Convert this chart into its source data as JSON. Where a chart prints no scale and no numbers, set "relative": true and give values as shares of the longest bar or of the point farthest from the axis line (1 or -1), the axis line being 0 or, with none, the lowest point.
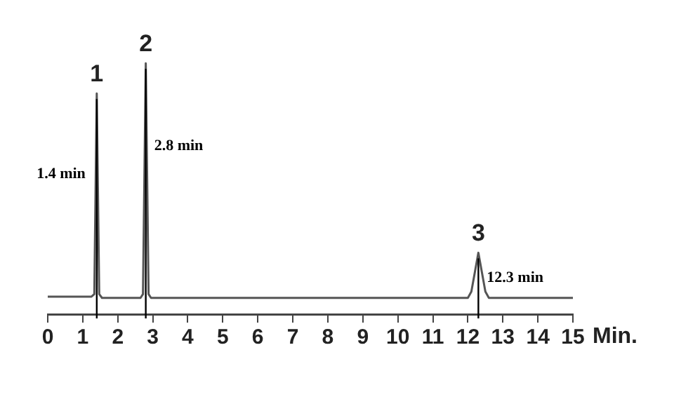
{
  "chart_data": {
    "type": "line",
    "relative": true,
    "xlabel": "Min.",
    "x": [
      0,
      1.25,
      1.33,
      1.4,
      1.47,
      1.55,
      2.65,
      2.72,
      2.8,
      2.88,
      2.95,
      5,
      12.0,
      12.1,
      12.3,
      12.5,
      12.6,
      15
    ],
    "series": [
      {
        "color": "#555555",
        "values": [
          0.07,
          0.07,
          0.08,
          0.88,
          0.08,
          0.065,
          0.065,
          0.08,
          1,
          0.08,
          0.065,
          0.065,
          0.065,
          0.09,
          0.245,
          0.09,
          0.065,
          0.065
        ]
      }
    ],
    "xlim": [
      0,
      15
    ],
    "xticks": [
      0,
      1,
      2,
      3,
      4,
      5,
      6,
      7,
      8,
      9,
      10,
      11,
      12,
      13,
      14,
      15
    ],
    "grid": false,
    "legend": false,
    "marker": "none",
    "line_style": "solid",
    "ref_lines": [
      {
        "axis": "x",
        "value": 1.4,
        "label": "1.4 min",
        "color": "#000000"
      },
      {
        "axis": "x",
        "value": 2.8,
        "label": "2.8 min",
        "color": "#000000"
      },
      {
        "axis": "x",
        "value": 12.3,
        "label": "12.3 min",
        "color": "#000000"
      }
    ],
    "annotations": [
      {
        "text": "1",
        "x": 1.4,
        "y": 0.88
      },
      {
        "text": "2",
        "x": 2.8,
        "y": 1
      },
      {
        "text": "3",
        "x": 12.3,
        "y": 0.245
      }
    ]
  }
}
